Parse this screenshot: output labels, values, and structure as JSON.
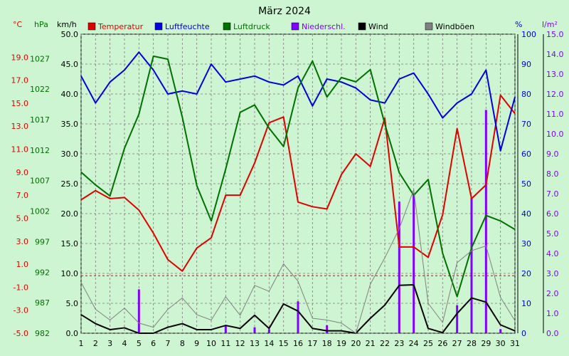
{
  "chart_data": {
    "type": "line",
    "title": "März 2024",
    "units": {
      "temp": "°C",
      "hpa": "hPa",
      "kmh": "km/h",
      "pct": "%",
      "rain": "l/m²"
    },
    "x": [
      1,
      2,
      3,
      4,
      5,
      6,
      7,
      8,
      9,
      10,
      11,
      12,
      13,
      14,
      15,
      16,
      17,
      18,
      19,
      20,
      21,
      22,
      23,
      24,
      25,
      26,
      27,
      28,
      29,
      30,
      31
    ],
    "axes": {
      "temp": {
        "min": -5,
        "max": 21,
        "ticks": [
          "19.0",
          "17.0",
          "15.0",
          "13.0",
          "11.0",
          "9.0",
          "7.0",
          "5.0",
          "3.0",
          "1.0",
          "-1.0",
          "-3.0",
          "-5.0"
        ]
      },
      "hpa": {
        "min": 982,
        "max": 1031,
        "ticks": [
          "1027",
          "1022",
          "1017",
          "1012",
          "1007",
          "1002",
          "997",
          "992",
          "987",
          "982"
        ]
      },
      "kmh": {
        "min": 0,
        "max": 50,
        "ticks": [
          "50.0",
          "45.0",
          "40.0",
          "35.0",
          "30.0",
          "25.0",
          "20.0",
          "15.0",
          "10.0",
          "5.0",
          "0.0"
        ]
      },
      "pct": {
        "min": 0,
        "max": 100,
        "ticks": [
          "100",
          "90",
          "80",
          "70",
          "60",
          "50",
          "40",
          "30",
          "20",
          "10",
          "0"
        ]
      },
      "rain": {
        "min": 0,
        "max": 15,
        "ticks": [
          "15.0",
          "14.0",
          "13.0",
          "12.0",
          "11.0",
          "10.0",
          "9.0",
          "8.0",
          "7.0",
          "6.0",
          "5.0",
          "4.0",
          "3.0",
          "2.0",
          "1.0",
          "0.0"
        ]
      }
    },
    "series": [
      {
        "name": "Temperatur",
        "axis": "temp",
        "color": "#e00000",
        "values": [
          6.6,
          7.4,
          6.7,
          6.8,
          5.7,
          3.7,
          1.4,
          0.4,
          2.4,
          3.3,
          7.0,
          7.0,
          9.8,
          13.3,
          13.8,
          6.4,
          6.0,
          5.8,
          8.8,
          10.6,
          9.5,
          13.7,
          2.5,
          2.5,
          1.6,
          5.3,
          12.8,
          6.7,
          7.9,
          15.7,
          14.1
        ]
      },
      {
        "name": "Luftfeuchte",
        "axis": "pct",
        "color": "#0000e0",
        "values": [
          86,
          77,
          84,
          88,
          94,
          88,
          80,
          81,
          80,
          90,
          84,
          85,
          86,
          84,
          83,
          86,
          76,
          85,
          84,
          82,
          78,
          77,
          85,
          87,
          80,
          72,
          77,
          80,
          88,
          61,
          79
        ]
      },
      {
        "name": "Luftdruck",
        "axis": "hpa",
        "color": "#007000",
        "values": [
          1008.4,
          1006.3,
          1004.5,
          1012.3,
          1017.9,
          1027.4,
          1026.9,
          1017.4,
          1006.2,
          1000.4,
          1008.9,
          1018.2,
          1019.4,
          1015.6,
          1012.6,
          1022.2,
          1026.6,
          1020.7,
          1023.9,
          1023.2,
          1025.2,
          1016.3,
          1008.3,
          1004.6,
          1007.2,
          995.1,
          988.0,
          996.0,
          1001.3,
          1000.4,
          999.0
        ]
      },
      {
        "name": "Niederschl.",
        "axis": "rain",
        "color": "#8000ff",
        "kind": "bar",
        "values": [
          0,
          0,
          0,
          0,
          2.2,
          0,
          0,
          0,
          0,
          0,
          0.4,
          0,
          0.3,
          0.2,
          0,
          1.6,
          0,
          0.4,
          0,
          0,
          0,
          0,
          6.6,
          7.0,
          0,
          0,
          1.4,
          6.8,
          11.2,
          0.2,
          0
        ]
      },
      {
        "name": "Wind",
        "axis": "kmh",
        "color": "#000000",
        "values": [
          3.1,
          1.6,
          0.6,
          0.9,
          0,
          0,
          1.0,
          1.6,
          0.6,
          0.6,
          1.3,
          0.8,
          3.0,
          0.8,
          4.9,
          3.7,
          0.8,
          0.4,
          0.4,
          0,
          2.5,
          4.7,
          8.0,
          8.1,
          0.8,
          0.1,
          3.3,
          5.9,
          5.2,
          1.4,
          0.4
        ]
      },
      {
        "name": "Windböen",
        "axis": "kmh",
        "color": "#808080",
        "values": [
          8.5,
          4.0,
          2.2,
          4.2,
          1.7,
          1.0,
          4.0,
          5.9,
          3.1,
          2.2,
          6.1,
          3.0,
          8.0,
          7.0,
          11.6,
          8.7,
          2.5,
          2.2,
          1.7,
          0,
          8.2,
          12.6,
          17.5,
          24.0,
          5.0,
          1.8,
          11.8,
          13.8,
          14.6,
          6.0,
          2.1
        ]
      }
    ]
  }
}
